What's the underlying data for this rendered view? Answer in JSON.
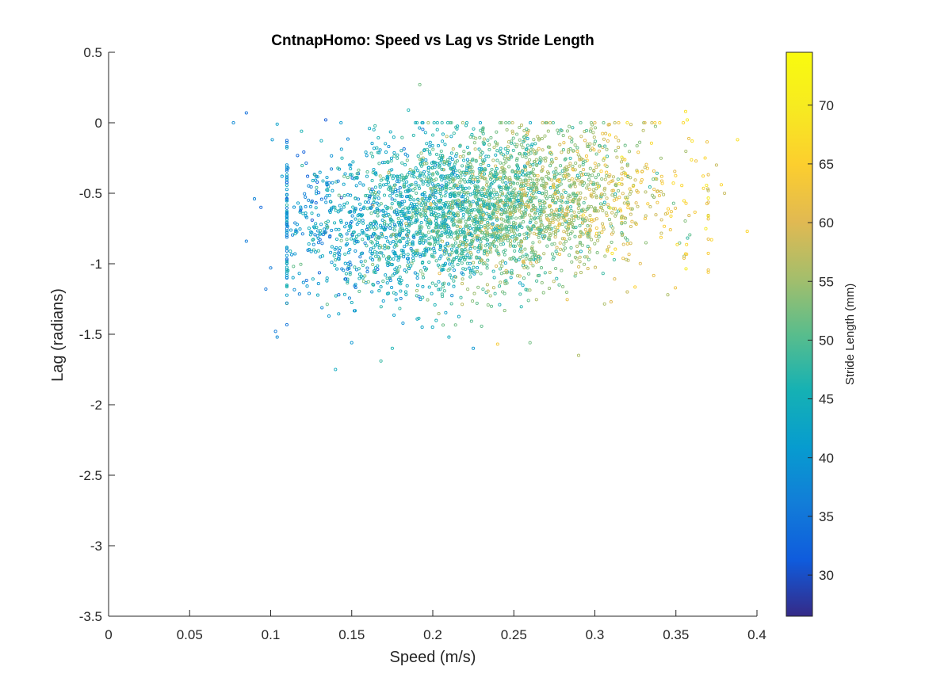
{
  "chart_data": {
    "type": "scatter",
    "title": "CntnapHomo: Speed vs Lag vs Stride Length",
    "xlabel": "Speed (m/s)",
    "ylabel": "Lag (radians)",
    "xlim": [
      0,
      0.4
    ],
    "ylim": [
      -3.5,
      0.5
    ],
    "xticks": [
      0,
      0.05,
      0.1,
      0.15,
      0.2,
      0.25,
      0.3,
      0.35,
      0.4
    ],
    "xtick_labels": [
      "0",
      "0.05",
      "0.1",
      "0.15",
      "0.2",
      "0.25",
      "0.3",
      "0.35",
      "0.4"
    ],
    "yticks": [
      0.5,
      0,
      -0.5,
      -1,
      -1.5,
      -2,
      -2.5,
      -3,
      -3.5
    ],
    "ytick_labels": [
      "0.5",
      "0",
      "-0.5",
      "-1",
      "-1.5",
      "-2",
      "-2.5",
      "-3",
      "-3.5"
    ],
    "grid": false,
    "marker": "open-circle",
    "colorbar": {
      "label": "Stride Length (mm)",
      "colormap": "parula",
      "clim": [
        26.5,
        74.5
      ],
      "ticks": [
        30,
        35,
        40,
        45,
        50,
        55,
        60,
        65,
        70
      ],
      "tick_labels": [
        "30",
        "35",
        "40",
        "45",
        "50",
        "55",
        "60",
        "65",
        "70"
      ],
      "placement": "right"
    },
    "point_cloud": {
      "description": "approx. 3500 points; speed ~0.08-0.40 m/s, lag ~-1.75-0.27 rad; stride length increases with speed",
      "count": 3500,
      "speed_range": [
        0.077,
        0.395
      ],
      "lag_range": [
        -1.75,
        0.27
      ],
      "stride_range": [
        28,
        72
      ]
    },
    "points": [
      [
        0.077,
        0.0,
        38
      ],
      [
        0.085,
        0.07,
        34
      ],
      [
        0.085,
        -0.84,
        36
      ],
      [
        0.09,
        -0.54,
        37
      ],
      [
        0.094,
        -0.6,
        33
      ],
      [
        0.097,
        -1.18,
        35
      ],
      [
        0.1,
        -1.03,
        36
      ],
      [
        0.101,
        -0.12,
        40
      ],
      [
        0.103,
        -1.48,
        36
      ],
      [
        0.104,
        -1.52,
        38
      ],
      [
        0.104,
        -0.01,
        42
      ],
      [
        0.107,
        -0.38,
        41
      ],
      [
        0.11,
        -0.8,
        37
      ],
      [
        0.115,
        -0.93,
        40
      ],
      [
        0.119,
        -0.06,
        46
      ],
      [
        0.134,
        0.02,
        31
      ],
      [
        0.14,
        -1.75,
        44
      ],
      [
        0.142,
        -1.22,
        34
      ],
      [
        0.15,
        -1.56,
        40
      ],
      [
        0.168,
        -1.69,
        48
      ],
      [
        0.175,
        -1.6,
        46
      ],
      [
        0.185,
        0.09,
        46
      ],
      [
        0.192,
        0.27,
        52
      ],
      [
        0.21,
        -1.52,
        44
      ],
      [
        0.225,
        -1.6,
        40
      ],
      [
        0.24,
        -1.57,
        64
      ],
      [
        0.26,
        -1.56,
        52
      ],
      [
        0.29,
        -1.65,
        56
      ],
      [
        0.3,
        0.0,
        60
      ],
      [
        0.32,
        0.0,
        68
      ],
      [
        0.34,
        0.0,
        66
      ],
      [
        0.356,
        0.08,
        68
      ],
      [
        0.357,
        0.02,
        70
      ],
      [
        0.36,
        -0.13,
        68
      ],
      [
        0.368,
        -0.25,
        66
      ],
      [
        0.372,
        -0.83,
        66
      ],
      [
        0.375,
        -0.3,
        58
      ],
      [
        0.378,
        -0.44,
        66
      ],
      [
        0.38,
        -0.5,
        58
      ],
      [
        0.388,
        -0.12,
        68
      ],
      [
        0.394,
        -0.77,
        66
      ],
      [
        0.37,
        -1.06,
        64
      ],
      [
        0.355,
        -0.96,
        62
      ],
      [
        0.345,
        -1.22,
        56
      ],
      [
        0.32,
        -1.2,
        58
      ],
      [
        0.31,
        -1.27,
        60
      ]
    ]
  }
}
